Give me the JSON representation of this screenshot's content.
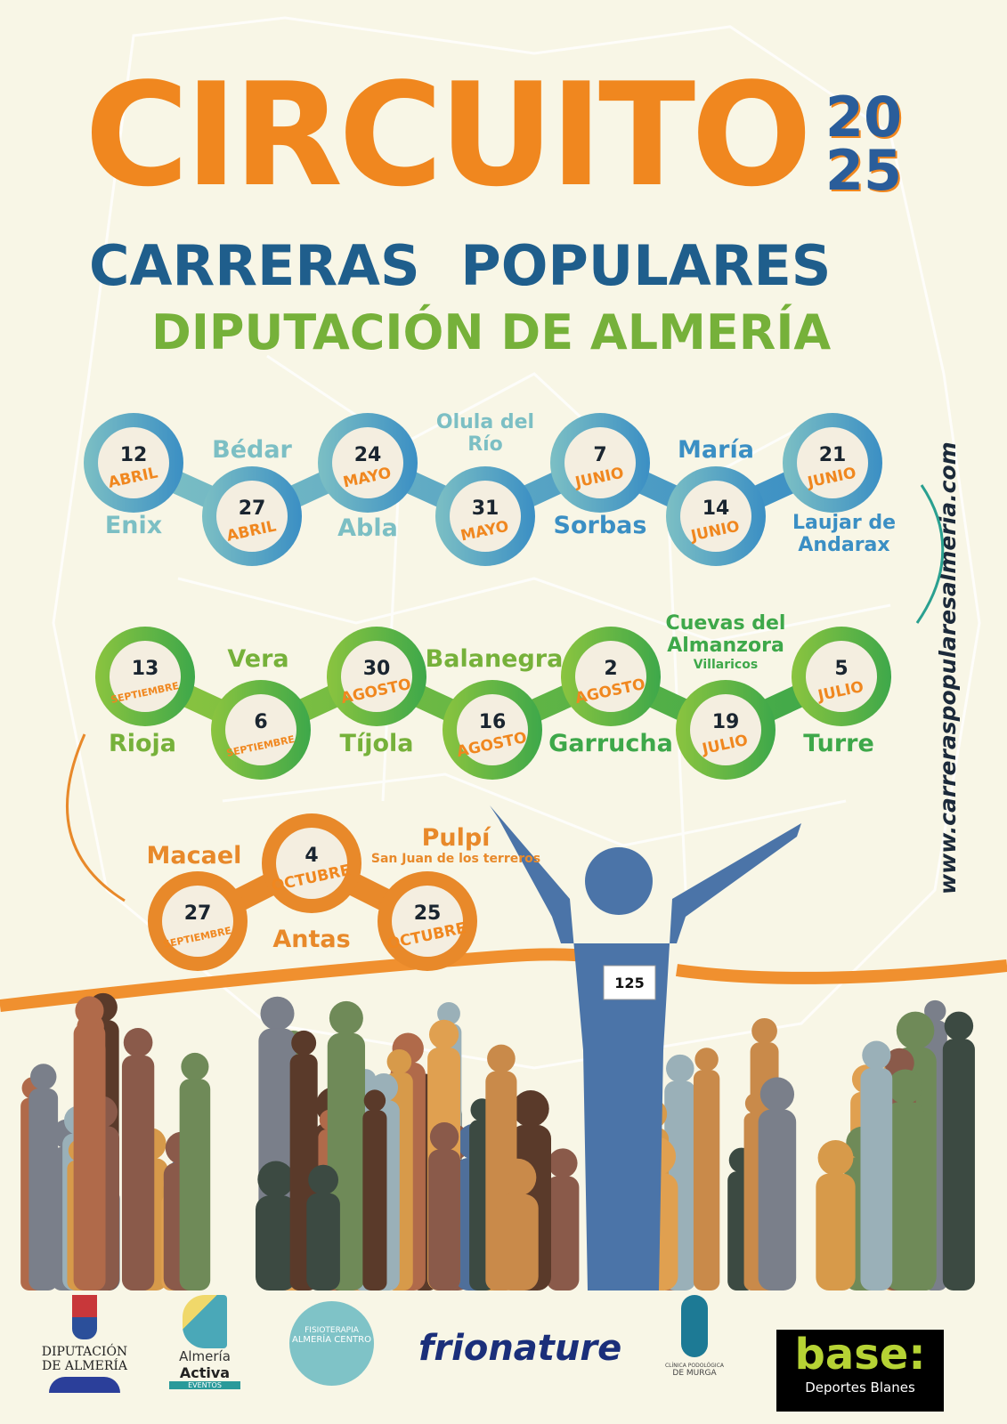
{
  "title": "CIRCUITO",
  "year": [
    "20",
    "25"
  ],
  "subtitle": "CARRERAS POPULARES",
  "organizer": "DIPUTACIÓN DE ALMERÍA",
  "website": "www.carreraspopularesalmeria.com",
  "colors": {
    "orange": "#f0871f",
    "blue": "#1f5e8c",
    "green": "#76b13a",
    "row1": "#7cbfc4",
    "row1_end": "#3b8fc4",
    "row2": "#8bc43f",
    "row2_end": "#3ea84a",
    "row3": "#e8892a"
  },
  "races": [
    {
      "day": "12",
      "month": "ABRIL",
      "town": "Enix"
    },
    {
      "day": "27",
      "month": "ABRIL",
      "town": "Bédar"
    },
    {
      "day": "24",
      "month": "MAYO",
      "town": "Abla"
    },
    {
      "day": "31",
      "month": "MAYO",
      "town": "Olula del Río"
    },
    {
      "day": "7",
      "month": "JUNIO",
      "town": "Sorbas"
    },
    {
      "day": "14",
      "month": "JUNIO",
      "town": "María"
    },
    {
      "day": "21",
      "month": "JUNIO",
      "town": "Laujar de Andarax"
    },
    {
      "day": "5",
      "month": "JULIO",
      "town": "Turre"
    },
    {
      "day": "19",
      "month": "JULIO",
      "town": "Cuevas del Almanzora",
      "note": "Villaricos"
    },
    {
      "day": "2",
      "month": "AGOSTO",
      "town": "Garrucha"
    },
    {
      "day": "16",
      "month": "AGOSTO",
      "town": "Balanegra"
    },
    {
      "day": "30",
      "month": "AGOSTO",
      "town": "Tíjola"
    },
    {
      "day": "6",
      "month": "SEPTIEMBRE",
      "town": "Vera"
    },
    {
      "day": "13",
      "month": "SEPTIEMBRE",
      "town": "Rioja"
    },
    {
      "day": "27",
      "month": "SEPTIEMBRE",
      "town": "Macael"
    },
    {
      "day": "4",
      "month": "OCTUBRE",
      "town": "Antas"
    },
    {
      "day": "25",
      "month": "OCTUBRE",
      "town": "Pulpí",
      "note": "San Juan de los terreros"
    }
  ],
  "bib": "125",
  "sponsors": [
    {
      "name": "DIPUTACIÓN DE ALMERÍA"
    },
    {
      "name": "Almería",
      "sub": "Activa",
      "tag": "EVENTOS"
    },
    {
      "name": "FISIOTERAPIA",
      "sub": "ALMERÍA CENTRO"
    },
    {
      "name": "frionature"
    },
    {
      "name": "CLÍNICA PODOLÓGICA",
      "sub": "DE MURGA"
    },
    {
      "name": "base:",
      "sub": "Deportes Blanes"
    }
  ]
}
